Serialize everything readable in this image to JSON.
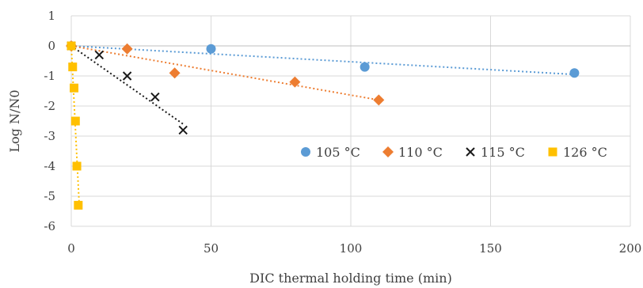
{
  "chart_data": {
    "type": "scatter",
    "title": "",
    "xlabel": "DIC thermal holding time (min)",
    "ylabel": "Log N/N0",
    "xlim": [
      0,
      200
    ],
    "ylim": [
      -6,
      1
    ],
    "x_ticks": [
      0,
      50,
      100,
      150,
      200
    ],
    "y_ticks": [
      1,
      0,
      -1,
      -2,
      -3,
      -4,
      -5,
      -6
    ],
    "grid": true,
    "legend_position": "right",
    "series": [
      {
        "name": "105 °C",
        "marker": "circle",
        "color": "#5b9bd5",
        "trendline": "dotted-linear",
        "points": [
          [
            0,
            0
          ],
          [
            50,
            -0.1
          ],
          [
            105,
            -0.7
          ],
          [
            180,
            -0.9
          ]
        ],
        "trend": [
          [
            0,
            0
          ],
          [
            180,
            -0.95
          ]
        ]
      },
      {
        "name": "110 °C",
        "marker": "diamond",
        "color": "#ed7d31",
        "trendline": "dotted-linear",
        "points": [
          [
            0,
            0
          ],
          [
            20,
            -0.1
          ],
          [
            37,
            -0.9
          ],
          [
            80,
            -1.2
          ],
          [
            110,
            -1.8
          ]
        ],
        "trend": [
          [
            0,
            0
          ],
          [
            110,
            -1.8
          ]
        ]
      },
      {
        "name": "115 °C",
        "marker": "x",
        "color": "#1a1a1a",
        "trendline": "dotted-linear",
        "points": [
          [
            0,
            0
          ],
          [
            10,
            -0.3
          ],
          [
            20,
            -1.0
          ],
          [
            30,
            -1.7
          ],
          [
            40,
            -2.8
          ]
        ],
        "trend": [
          [
            0,
            0
          ],
          [
            40,
            -2.6
          ]
        ]
      },
      {
        "name": "126 °C",
        "marker": "square",
        "color": "#ffc000",
        "trendline": "dotted-linear",
        "points": [
          [
            0,
            0
          ],
          [
            0.5,
            -0.7
          ],
          [
            1,
            -1.4
          ],
          [
            1.5,
            -2.5
          ],
          [
            2,
            -4.0
          ],
          [
            2.5,
            -5.3
          ]
        ],
        "trend": [
          [
            0,
            0
          ],
          [
            2.8,
            -5.2
          ]
        ]
      }
    ]
  }
}
